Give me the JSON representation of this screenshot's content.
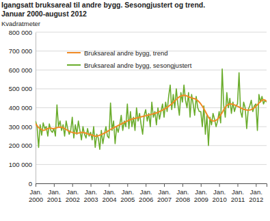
{
  "chart_data": {
    "type": "line",
    "title": "Igangsatt bruksareal til andre bygg. Sesongjustert og trend.",
    "subtitle": "Januar 2000-august 2012",
    "y_label": "Kvadratmeter",
    "categories": [
      "Jan. 2000",
      null,
      null,
      null,
      null,
      null,
      null,
      null,
      null,
      null,
      null,
      null,
      "Jan. 2001",
      null,
      null,
      null,
      null,
      null,
      null,
      null,
      null,
      null,
      null,
      null,
      "Jan. 2002",
      null,
      null,
      null,
      null,
      null,
      null,
      null,
      null,
      null,
      null,
      null,
      "Jan. 2003",
      null,
      null,
      null,
      null,
      null,
      null,
      null,
      null,
      null,
      null,
      null,
      "Jan. 2004",
      null,
      null,
      null,
      null,
      null,
      null,
      null,
      null,
      null,
      null,
      null,
      "Jan. 2005",
      null,
      null,
      null,
      null,
      null,
      null,
      null,
      null,
      null,
      null,
      null,
      "Jan. 2006",
      null,
      null,
      null,
      null,
      null,
      null,
      null,
      null,
      null,
      null,
      null,
      "Jan. 2007",
      null,
      null,
      null,
      null,
      null,
      null,
      null,
      null,
      null,
      null,
      null,
      "Jan. 2008",
      null,
      null,
      null,
      null,
      null,
      null,
      null,
      null,
      null,
      null,
      null,
      "Jan. 2009",
      null,
      null,
      null,
      null,
      null,
      null,
      null,
      null,
      null,
      null,
      null,
      "Jan. 2010",
      null,
      null,
      null,
      null,
      null,
      null,
      null,
      null,
      null,
      null,
      null,
      "Jan. 2011",
      null,
      null,
      null,
      null,
      null,
      null,
      null,
      null,
      null,
      null,
      null,
      "Jan. 2012",
      null,
      null,
      null,
      null,
      null,
      null,
      null
    ],
    "series": [
      {
        "name": "Bruksareal andre bygg, trend",
        "color": "#f08a24",
        "values": [
          315000,
          305000,
          295000,
          290000,
          285000,
          280000,
          282000,
          286000,
          290000,
          292000,
          292000,
          290000,
          290000,
          292000,
          295000,
          297000,
          298000,
          297000,
          295000,
          290000,
          285000,
          280000,
          276000,
          272000,
          270000,
          268000,
          266000,
          265000,
          266000,
          268000,
          270000,
          270000,
          268000,
          265000,
          262000,
          260000,
          258000,
          255000,
          252000,
          250000,
          250000,
          252000,
          255000,
          258000,
          262000,
          266000,
          270000,
          275000,
          280000,
          285000,
          290000,
          294000,
          298000,
          302000,
          306000,
          310000,
          314000,
          318000,
          322000,
          326000,
          330000,
          334000,
          337000,
          340000,
          342000,
          344000,
          346000,
          348000,
          350000,
          352000,
          354000,
          356000,
          358000,
          360000,
          362000,
          364000,
          366000,
          368000,
          370000,
          373000,
          376000,
          380000,
          384000,
          388000,
          392000,
          397000,
          402000,
          408000,
          414000,
          420000,
          428000,
          436000,
          444000,
          452000,
          458000,
          462000,
          465000,
          466000,
          465000,
          462000,
          458000,
          455000,
          452000,
          450000,
          448000,
          444000,
          438000,
          430000,
          420000,
          408000,
          395000,
          380000,
          365000,
          350000,
          340000,
          333000,
          330000,
          330000,
          334000,
          340000,
          350000,
          362000,
          375000,
          390000,
          402000,
          412000,
          418000,
          420000,
          420000,
          418000,
          415000,
          412000,
          408000,
          404000,
          400000,
          396000,
          392000,
          390000,
          388000,
          387000,
          388000,
          390000,
          395000,
          400000,
          408000,
          416000,
          425000,
          433000,
          440000,
          443000,
          440000,
          435000
        ]
      },
      {
        "name": "Bruksareal andre bygg, sesongjustert",
        "color": "#6aac2c",
        "values": [
          330000,
          300000,
          190000,
          310000,
          255000,
          320000,
          290000,
          300000,
          250000,
          315000,
          280000,
          270000,
          290000,
          250000,
          415000,
          300000,
          330000,
          280000,
          310000,
          250000,
          330000,
          290000,
          260000,
          280000,
          350000,
          240000,
          310000,
          260000,
          330000,
          280000,
          230000,
          300000,
          260000,
          240000,
          290000,
          250000,
          270000,
          230000,
          300000,
          190000,
          260000,
          240000,
          180000,
          280000,
          210000,
          260000,
          300000,
          250000,
          240000,
          425000,
          280000,
          330000,
          210000,
          300000,
          270000,
          310000,
          360000,
          280000,
          330000,
          300000,
          420000,
          290000,
          380000,
          300000,
          350000,
          280000,
          400000,
          330000,
          370000,
          310000,
          260000,
          360000,
          390000,
          330000,
          370000,
          300000,
          430000,
          350000,
          380000,
          310000,
          400000,
          340000,
          380000,
          420000,
          350000,
          430000,
          380000,
          460000,
          520000,
          390000,
          470000,
          400000,
          500000,
          420000,
          360000,
          480000,
          430000,
          520000,
          440000,
          400000,
          480000,
          350000,
          470000,
          420000,
          360000,
          460000,
          400000,
          380000,
          380000,
          300000,
          410000,
          260000,
          360000,
          200000,
          350000,
          310000,
          370000,
          340000,
          300000,
          330000,
          380000,
          320000,
          605000,
          410000,
          350000,
          480000,
          400000,
          450000,
          370000,
          430000,
          380000,
          410000,
          420000,
          585000,
          380000,
          350000,
          430000,
          400000,
          290000,
          390000,
          410000,
          440000,
          380000,
          410000,
          420000,
          280000,
          470000,
          430000,
          460000,
          420000,
          440000,
          430000
        ]
      }
    ],
    "ylim": [
      0,
      800000
    ],
    "yticks": [
      0,
      {
        "value": 100000,
        "label": "100 000"
      },
      {
        "value": 200000,
        "label": "200 000"
      },
      {
        "value": 300000,
        "label": "300 000"
      },
      {
        "value": 400000,
        "label": "400 000"
      },
      {
        "value": 500000,
        "label": "500 000"
      },
      {
        "value": 600000,
        "label": "600 000"
      },
      {
        "value": 700000,
        "label": "700 000"
      },
      {
        "value": 800000,
        "label": "800 000"
      }
    ],
    "grid": true,
    "legend": "upper left"
  }
}
